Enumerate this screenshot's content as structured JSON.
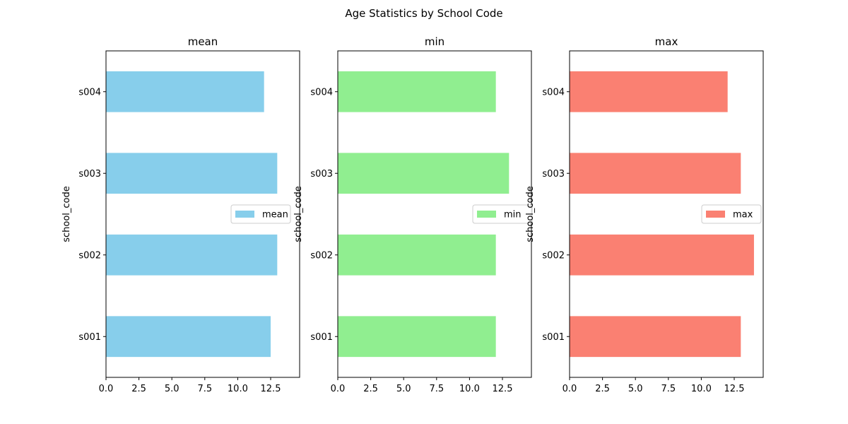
{
  "figure_title": "Age Statistics by School Code",
  "colors": {
    "mean": "#87ceeb",
    "min": "#90ee90",
    "max": "#fa8072"
  },
  "chart_data": [
    {
      "type": "bar",
      "orientation": "horizontal",
      "title": "mean",
      "ylabel": "school_code",
      "xlabel": "",
      "categories": [
        "s001",
        "s002",
        "s003",
        "s004"
      ],
      "series": [
        {
          "name": "mean",
          "values": [
            12.5,
            13.0,
            13.0,
            12.0
          ]
        }
      ],
      "xlim": [
        0,
        14.7
      ],
      "xticks": [
        "0.0",
        "2.5",
        "5.0",
        "7.5",
        "10.0",
        "12.5"
      ],
      "legend": "center-right",
      "grid": false
    },
    {
      "type": "bar",
      "orientation": "horizontal",
      "title": "min",
      "ylabel": "school_code",
      "xlabel": "",
      "categories": [
        "s001",
        "s002",
        "s003",
        "s004"
      ],
      "series": [
        {
          "name": "min",
          "values": [
            12,
            12,
            13,
            12
          ]
        }
      ],
      "xlim": [
        0,
        14.7
      ],
      "xticks": [
        "0.0",
        "2.5",
        "5.0",
        "7.5",
        "10.0",
        "12.5"
      ],
      "legend": "center-right",
      "grid": false
    },
    {
      "type": "bar",
      "orientation": "horizontal",
      "title": "max",
      "ylabel": "school_code",
      "xlabel": "",
      "categories": [
        "s001",
        "s002",
        "s003",
        "s004"
      ],
      "series": [
        {
          "name": "max",
          "values": [
            13,
            14,
            13,
            12
          ]
        }
      ],
      "xlim": [
        0,
        14.7
      ],
      "xticks": [
        "0.0",
        "2.5",
        "5.0",
        "7.5",
        "10.0",
        "12.5"
      ],
      "legend": "center-right",
      "grid": false
    }
  ]
}
